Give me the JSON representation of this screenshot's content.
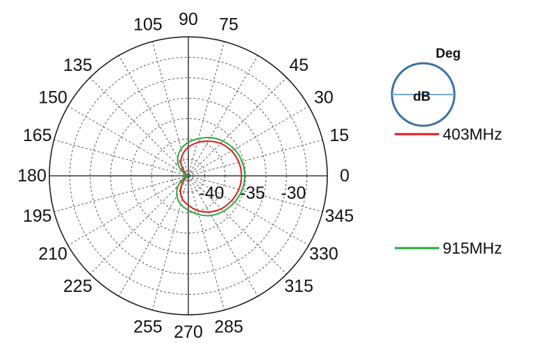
{
  "chart_data": {
    "type": "polar",
    "angle_unit": "Deg",
    "radial_unit": "dB",
    "angle_ticks": [
      0,
      15,
      30,
      45,
      75,
      90,
      105,
      135,
      150,
      165,
      180,
      195,
      210,
      225,
      255,
      270,
      285,
      315,
      330,
      345
    ],
    "radial_ticks": [
      -40,
      -35,
      -30
    ],
    "radial_range": [
      -42,
      -25
    ],
    "grid": true,
    "legend": "right",
    "legend_key": {
      "angle_label": "Deg",
      "radius_label": "dB"
    },
    "series": [
      {
        "name": "403MHz",
        "color": "#e8141b",
        "angles": [
          0,
          15,
          30,
          45,
          60,
          75,
          90,
          105,
          120,
          135,
          150,
          165,
          180,
          195,
          210,
          225,
          240,
          255,
          270,
          285,
          300,
          315,
          330,
          345
        ],
        "values": [
          -35.5,
          -35.6,
          -35.9,
          -36.4,
          -37.1,
          -37.8,
          -38.5,
          -39.3,
          -40.2,
          -41.3,
          -41.9,
          -42,
          -42,
          -42,
          -41.9,
          -41.2,
          -40.1,
          -39.1,
          -38.4,
          -37.6,
          -36.9,
          -36.3,
          -35.9,
          -35.6
        ]
      },
      {
        "name": "915MHz",
        "color": "#1fae3b",
        "angles": [
          0,
          15,
          30,
          45,
          60,
          75,
          90,
          105,
          120,
          135,
          150,
          165,
          180,
          195,
          210,
          225,
          240,
          255,
          270,
          285,
          300,
          315,
          330,
          345
        ],
        "values": [
          -35.1,
          -35.2,
          -35.5,
          -36,
          -36.6,
          -37.3,
          -37.9,
          -38.6,
          -39.4,
          -40.4,
          -41.4,
          -42,
          -42,
          -42,
          -41.3,
          -40.2,
          -39.2,
          -38.4,
          -37.8,
          -37.1,
          -36.4,
          -35.9,
          -35.5,
          -35.2
        ]
      }
    ]
  }
}
